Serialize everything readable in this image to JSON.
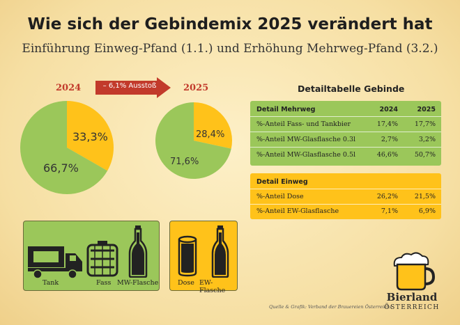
{
  "header": {
    "title": "Wie sich der Gebindemix 2025 verändert hat",
    "subtitle": "Einführung Einweg-Pfand (1.1.) und Erhöhung Mehrweg-Pfand (3.2.)"
  },
  "colors": {
    "green": "#9bc75a",
    "yellow": "#ffc21a",
    "red": "#c23a2b"
  },
  "arrow": {
    "label": "– 6,1% Ausstoß"
  },
  "chart_data": [
    {
      "type": "pie",
      "title": "2024",
      "slices": [
        {
          "label": "33,3%",
          "value": 33.3,
          "color": "#ffc21a"
        },
        {
          "label": "66,7%",
          "value": 66.7,
          "color": "#9bc75a"
        }
      ]
    },
    {
      "type": "pie",
      "title": "2025",
      "slices": [
        {
          "label": "28,4%",
          "value": 28.4,
          "color": "#ffc21a"
        },
        {
          "label": "71,6%",
          "value": 71.6,
          "color": "#9bc75a"
        }
      ]
    },
    {
      "type": "table",
      "title": "Detailtabelle Gebinde",
      "mehrweg": {
        "header": [
          "Detail Mehrweg",
          "2024",
          "2025"
        ],
        "rows": [
          [
            "%-Anteil Fass- und Tankbier",
            "17,4%",
            "17,7%"
          ],
          [
            "%-Anteil MW-Glasflasche 0.3l",
            "2,7%",
            "3,2%"
          ],
          [
            "%-Anteil MW-Glasflasche 0.5l",
            "46,6%",
            "50,7%"
          ]
        ]
      },
      "einweg": {
        "header": [
          "Detail Einweg"
        ],
        "rows": [
          [
            "%-Anteil Dose",
            "26,2%",
            "21,5%"
          ],
          [
            "%-Anteil EW-Glasflasche",
            "7,1%",
            "6,9%"
          ]
        ]
      }
    }
  ],
  "legend": {
    "mehrweg_items": [
      "Tank",
      "Fass",
      "MW-Flasche"
    ],
    "einweg_items": [
      "Dose",
      "EW-Flasche"
    ],
    "icons": [
      "truck-icon",
      "keg-icon",
      "bottle-icon",
      "can-icon",
      "bottle-icon"
    ]
  },
  "source": "Quelle & Grafik: Verband der Brauereien Österreichs",
  "logo": {
    "line1": "Bierland",
    "line2": "ÖSTERREICH"
  }
}
